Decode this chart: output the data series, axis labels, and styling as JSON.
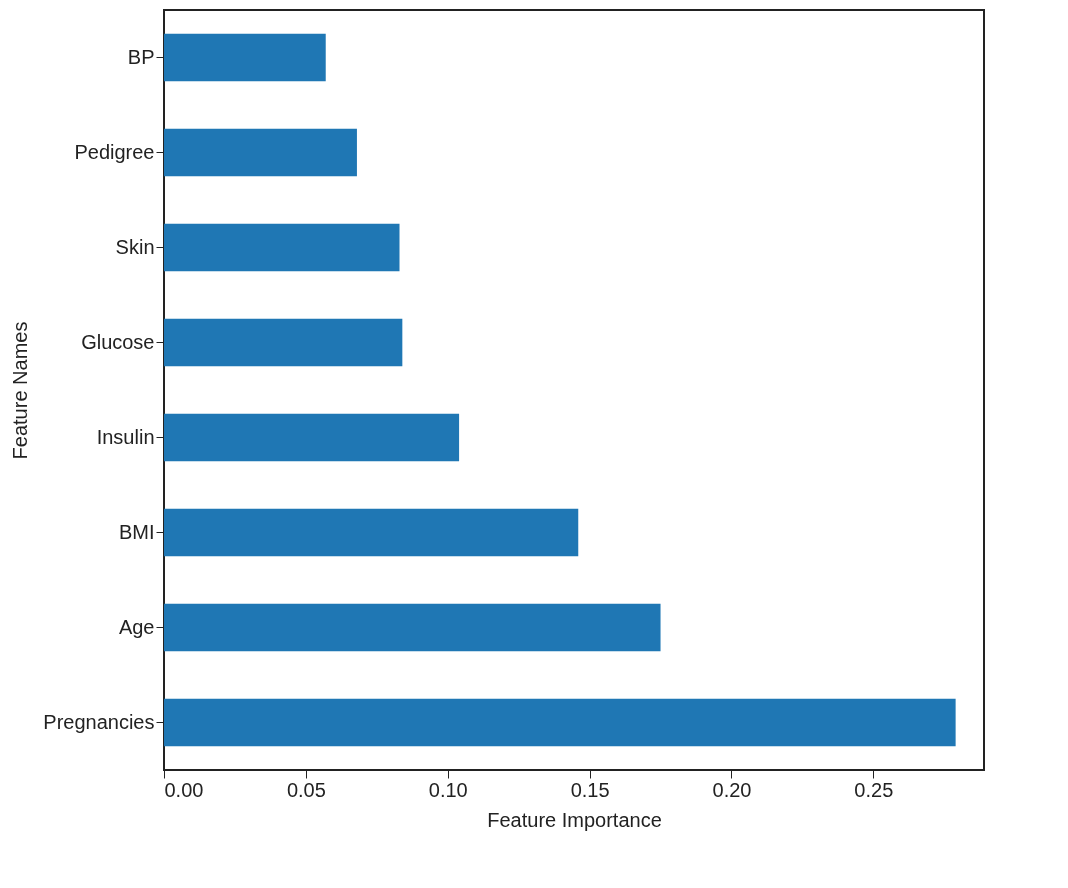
{
  "chart_data": {
    "type": "bar",
    "orientation": "horizontal",
    "xlabel": "Feature Importance",
    "ylabel": "Feature Names",
    "categories": [
      "BP",
      "Pedigree",
      "Skin",
      "Glucose",
      "Insulin",
      "BMI",
      "Age",
      "Pregnancies"
    ],
    "values": [
      0.057,
      0.068,
      0.083,
      0.084,
      0.104,
      0.146,
      0.175,
      0.279
    ],
    "color": "#1f77b4",
    "xlim": [
      0,
      0.289
    ],
    "xticks": [
      {
        "value": 0,
        "label": "0.00"
      },
      {
        "value": 0.05,
        "label": "0.05"
      },
      {
        "value": 0.1,
        "label": "0.10"
      },
      {
        "value": 0.15,
        "label": "0.15"
      },
      {
        "value": 0.2,
        "label": "0.20"
      },
      {
        "value": 0.25,
        "label": "0.25"
      }
    ],
    "grid": false
  }
}
